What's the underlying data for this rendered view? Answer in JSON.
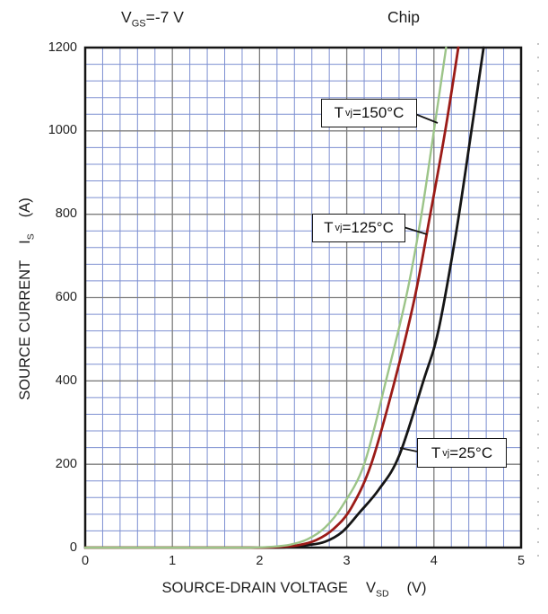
{
  "header": {
    "condition": {
      "base": "V",
      "sub": "GS",
      "rest": "=-7 V"
    },
    "chip_label": "Chip"
  },
  "chart_data": {
    "type": "line",
    "title": "",
    "xlabel": {
      "text": "SOURCE-DRAIN VOLTAGE",
      "symbol": "V",
      "symbol_sub": "SD",
      "unit": "(V)"
    },
    "ylabel": {
      "text": "SOURCE CURRENT",
      "symbol": "I",
      "symbol_sub": "S",
      "unit": "(A)"
    },
    "xlim": [
      0,
      5
    ],
    "ylim": [
      0,
      1200
    ],
    "x_ticks": [
      0,
      1,
      2,
      3,
      4,
      5
    ],
    "y_ticks": [
      0,
      200,
      400,
      600,
      800,
      1000,
      1200
    ],
    "minor_divisions_per_major": 5,
    "grid": {
      "minor_color": "#7d8fd1",
      "major_color": "#7e7e7e",
      "border_color": "#151515"
    },
    "legend_position": "inline-callouts",
    "series": [
      {
        "name": "Tvj=150C",
        "color": "#9cc488",
        "width": 2.4,
        "points": [
          [
            0,
            0
          ],
          [
            1.2,
            0
          ],
          [
            1.9,
            0
          ],
          [
            2.15,
            2
          ],
          [
            2.35,
            7
          ],
          [
            2.55,
            20
          ],
          [
            2.75,
            48
          ],
          [
            2.95,
            100
          ],
          [
            3.2,
            200
          ],
          [
            3.45,
            400
          ],
          [
            3.68,
            600
          ],
          [
            3.85,
            790
          ],
          [
            4.0,
            1000
          ],
          [
            4.14,
            1200
          ]
        ]
      },
      {
        "name": "Tvj=125C",
        "color": "#9b1b17",
        "width": 2.8,
        "points": [
          [
            0,
            0
          ],
          [
            1.2,
            0
          ],
          [
            2.0,
            0
          ],
          [
            2.25,
            2
          ],
          [
            2.45,
            6
          ],
          [
            2.65,
            18
          ],
          [
            2.85,
            45
          ],
          [
            3.05,
            95
          ],
          [
            3.28,
            200
          ],
          [
            3.55,
            400
          ],
          [
            3.78,
            600
          ],
          [
            3.95,
            790
          ],
          [
            4.13,
            1000
          ],
          [
            4.28,
            1200
          ]
        ]
      },
      {
        "name": "Tvj=25C",
        "color": "#151515",
        "width": 2.8,
        "points": [
          [
            0,
            0
          ],
          [
            1.2,
            0
          ],
          [
            2.15,
            0
          ],
          [
            2.35,
            2
          ],
          [
            2.55,
            6
          ],
          [
            2.75,
            14
          ],
          [
            2.95,
            38
          ],
          [
            3.15,
            85
          ],
          [
            3.37,
            140
          ],
          [
            3.6,
            220
          ],
          [
            3.88,
            400
          ],
          [
            4.05,
            520
          ],
          [
            4.25,
            750
          ],
          [
            4.43,
            1000
          ],
          [
            4.57,
            1200
          ]
        ]
      }
    ],
    "annotations": [
      {
        "prefix": "T",
        "sub": "vj",
        "suffix": "=150°C",
        "series": "Tvj=150C"
      },
      {
        "prefix": "T",
        "sub": "vj",
        "suffix": "=125°C",
        "series": "Tvj=125C"
      },
      {
        "prefix": "T",
        "sub": "vj",
        "suffix": "=25°C",
        "series": "Tvj=25C"
      }
    ]
  }
}
